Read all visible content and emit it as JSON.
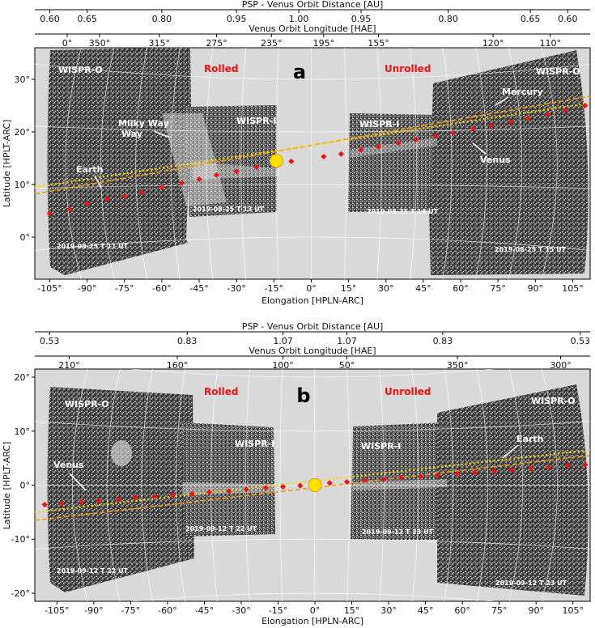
{
  "chart_data": [
    {
      "type": "scatter",
      "panel_letter": "a",
      "title": "PSP - Venus Orbit Distance [AU]",
      "xlabel": "Elongation [HPLN-ARC]",
      "ylabel": "Latitude [HPLT-ARC]",
      "xlim": [
        -111,
        112
      ],
      "ylim": [
        -8,
        36
      ],
      "x_ticks": [
        -105,
        -90,
        -75,
        -60,
        -45,
        -30,
        -15,
        0,
        15,
        30,
        45,
        60,
        75,
        90,
        105
      ],
      "x_tick_labels": [
        "-105°",
        "-90°",
        "-75°",
        "-60°",
        "-45°",
        "-30°",
        "-15°",
        "0°",
        "15°",
        "30°",
        "45°",
        "60°",
        "75°",
        "90°",
        "105°"
      ],
      "y_ticks": [
        0,
        10,
        20,
        30
      ],
      "y_tick_labels": [
        "0°",
        "10°",
        "20°",
        "30°"
      ],
      "top_axis_1": {
        "label": "PSP - Venus Orbit Distance [AU]",
        "ticks": [
          -105,
          -90,
          -60,
          -30,
          -5,
          20,
          55,
          88,
          103
        ],
        "tick_labels": [
          "0.60",
          "0.65",
          "0.80",
          "0.95",
          "1.00",
          "0.95",
          "0.80",
          "0.65",
          "0.60"
        ]
      },
      "top_axis_2": {
        "label": "Venus Orbit Longitude [HAE]",
        "ticks": [
          -98,
          -85,
          -61,
          -38,
          -16,
          5,
          27,
          73,
          96
        ],
        "tick_labels": [
          "0°",
          "350°",
          "315°",
          "275°",
          "235°",
          "195°",
          "155°",
          "120°",
          "110°"
        ]
      },
      "sun": {
        "x": -14,
        "y": 14.5
      },
      "ecliptic_fit": {
        "x": [
          -111,
          112
        ],
        "y": [
          8.2,
          26.8
        ]
      },
      "planet_trajectory": {
        "x": [
          -111,
          112
        ],
        "y": [
          9.5,
          25.5
        ]
      },
      "series": [
        {
          "x": [
            -105,
            -97,
            -90,
            -82,
            -75,
            -68,
            -60,
            -52,
            -45,
            -38,
            -30,
            -22,
            -15,
            -8,
            5,
            12,
            20,
            27,
            35,
            42,
            50,
            57,
            65,
            72,
            80,
            87,
            95,
            102,
            110
          ],
          "y": [
            4.5,
            5.3,
            6.4,
            7.2,
            7.8,
            8.5,
            9.5,
            10.3,
            11,
            11.8,
            12.5,
            13.3,
            13.9,
            14.4,
            15.3,
            15.8,
            16.6,
            17.2,
            17.9,
            18.5,
            19.2,
            19.8,
            20.6,
            21.2,
            21.9,
            22.6,
            23.3,
            24.1,
            25
          ]
        }
      ],
      "annotations": {
        "instrument_labels": [
          "WISPR-O",
          "WISPR-I",
          "WISPR-I",
          "WISPR-O"
        ],
        "roll_labels": [
          "Rolled",
          "Unrolled"
        ],
        "objects": [
          "Earth",
          "Milky Way",
          "Mercury",
          "Venus"
        ],
        "timestamps": [
          "2019-08-25 T 11 UT",
          "2019-08-25 T 13 UT",
          "2019-08-25 T 14 UT",
          "2019-08-25 T 15 UT"
        ]
      }
    },
    {
      "type": "scatter",
      "panel_letter": "b",
      "title": "PSP - Venus Orbit Distance [AU]",
      "xlabel": "Elongation [HPLN-ARC]",
      "ylabel": "Latitude [HPLT-ARC]",
      "xlim": [
        -114,
        112
      ],
      "ylim": [
        -21.5,
        21.5
      ],
      "x_ticks": [
        -105,
        -90,
        -75,
        -60,
        -45,
        -30,
        -15,
        0,
        15,
        30,
        45,
        60,
        75,
        90,
        105
      ],
      "x_tick_labels": [
        "-105°",
        "-90°",
        "-75°",
        "-60°",
        "-45°",
        "-30°",
        "-15°",
        "0°",
        "15°",
        "30°",
        "45°",
        "60°",
        "75°",
        "90°",
        "105°"
      ],
      "y_ticks": [
        -20,
        -10,
        0,
        10,
        20
      ],
      "y_tick_labels": [
        "-20°",
        "-10°",
        "0°",
        "10°",
        "20°"
      ],
      "top_axis_1": {
        "label": "PSP - Venus Orbit Distance [AU]",
        "ticks": [
          -108,
          -52,
          -13,
          13,
          52,
          108
        ],
        "tick_labels": [
          "0.53",
          "0.83",
          "1.07",
          "1.07",
          "0.83",
          "0.53"
        ]
      },
      "top_axis_2": {
        "label": "Venus Orbit Longitude [HAE]",
        "ticks": [
          -100,
          -56,
          -13,
          13,
          58,
          100
        ],
        "tick_labels": [
          "210°",
          "160°",
          "100°",
          "50°",
          "350°",
          "300°"
        ]
      },
      "sun": {
        "x": 0,
        "y": 0
      },
      "ecliptic_fit": {
        "x": [
          -114,
          112
        ],
        "y": [
          -6.5,
          5.5
        ]
      },
      "planet_trajectory": {
        "x": [
          -114,
          112
        ],
        "y": [
          -5.0,
          6.5
        ]
      },
      "series": [
        {
          "x": [
            -110,
            -103,
            -95,
            -88,
            -80,
            -73,
            -65,
            -58,
            -50,
            -43,
            -35,
            -28,
            -20,
            -13,
            -6,
            6,
            13,
            20,
            28,
            35,
            43,
            50,
            58,
            65,
            73,
            80,
            88,
            95,
            103,
            110
          ],
          "y": [
            -3.6,
            -3.4,
            -3.1,
            -2.9,
            -2.6,
            -2.3,
            -2.1,
            -1.8,
            -1.6,
            -1.3,
            -1.1,
            -0.8,
            -0.5,
            -0.3,
            -0.1,
            0.4,
            0.6,
            0.9,
            1.1,
            1.4,
            1.6,
            1.8,
            2.1,
            2.3,
            2.6,
            2.8,
            3.1,
            3.3,
            3.6,
            3.8
          ]
        }
      ],
      "annotations": {
        "instrument_labels": [
          "WISPR-O",
          "WISPR-I",
          "WISPR-I",
          "WISPR-O"
        ],
        "roll_labels": [
          "Rolled",
          "Unrolled"
        ],
        "objects": [
          "Venus",
          "Earth"
        ],
        "timestamps": [
          "2019-09-12 T 22 UT",
          "2019-09-12 T 22 UT",
          "2019-09-12 T 23 UT",
          "2019-09-12 T 23 UT"
        ]
      }
    }
  ],
  "colors": {
    "sky": "#d9d9d9",
    "grid": "#ffffff",
    "sun_fill": "#ffe000",
    "sun_stroke": "#e0a000",
    "orange_line": "#f39c12",
    "yellow_line": "#ffd700",
    "red_points": "#e8141a",
    "roll_label": "#ee1111"
  }
}
